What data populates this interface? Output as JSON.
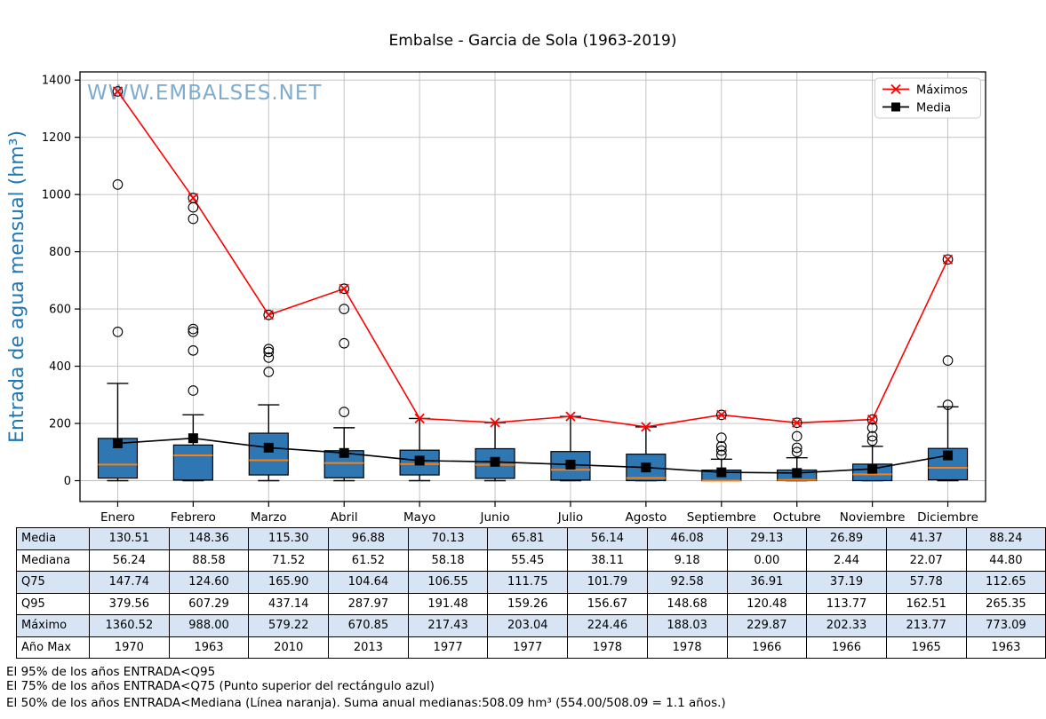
{
  "title": "Embalse - Garcia de Sola (1963-2019)",
  "watermark": "WWW.EMBALSES.NET",
  "legend": {
    "maximos_label": "Máximos",
    "media_label": "Media"
  },
  "y_axis_label": "Entrada de agua mensual (hm³)",
  "chart_data": {
    "type": "boxplot",
    "title": "Embalse - Garcia de Sola (1963-2019)",
    "ylabel": "Entrada de agua mensual (hm³)",
    "ylim": [
      0,
      1400
    ],
    "yticks": [
      0,
      200,
      400,
      600,
      800,
      1000,
      1200,
      1400
    ],
    "grid": true,
    "legend_position": "upper right",
    "categories": [
      "Enero",
      "Febrero",
      "Marzo",
      "Abril",
      "Mayo",
      "Junio",
      "Julio",
      "Agosto",
      "Septiembre",
      "Octubre",
      "Noviembre",
      "Diciembre"
    ],
    "series": [
      {
        "name": "Máximos",
        "marker": "x",
        "color": "#ff0000",
        "values": [
          1360.52,
          988.0,
          579.22,
          670.85,
          217.43,
          203.04,
          224.46,
          188.03,
          229.87,
          202.33,
          213.77,
          773.09
        ]
      },
      {
        "name": "Media",
        "marker": "square",
        "color": "#000000",
        "values": [
          130.51,
          148.36,
          115.3,
          96.88,
          70.13,
          65.81,
          56.14,
          46.08,
          29.13,
          26.89,
          41.37,
          88.24
        ]
      }
    ],
    "boxes": [
      {
        "month": "Enero",
        "q1": 9,
        "median": 56.24,
        "q3": 147.74,
        "whisker_low": 0,
        "whisker_high": 340,
        "outliers": [
          520,
          1035,
          1360.52
        ]
      },
      {
        "month": "Febrero",
        "q1": 2,
        "median": 88.58,
        "q3": 124.6,
        "whisker_low": 0,
        "whisker_high": 230,
        "outliers": [
          315,
          455,
          520,
          530,
          915,
          955,
          988.0
        ]
      },
      {
        "month": "Marzo",
        "q1": 20,
        "median": 71.52,
        "q3": 165.9,
        "whisker_low": 0,
        "whisker_high": 265,
        "outliers": [
          380,
          430,
          450,
          460,
          579.22
        ]
      },
      {
        "month": "Abril",
        "q1": 10,
        "median": 61.52,
        "q3": 104.64,
        "whisker_low": 0,
        "whisker_high": 185,
        "outliers": [
          240,
          480,
          600,
          670.85
        ]
      },
      {
        "month": "Mayo",
        "q1": 20,
        "median": 58.18,
        "q3": 106.55,
        "whisker_low": 0,
        "whisker_high": 217.43,
        "outliers": []
      },
      {
        "month": "Junio",
        "q1": 8,
        "median": 55.45,
        "q3": 111.75,
        "whisker_low": 0,
        "whisker_high": 203.04,
        "outliers": []
      },
      {
        "month": "Julio",
        "q1": 2,
        "median": 38.11,
        "q3": 101.79,
        "whisker_low": 0,
        "whisker_high": 224.46,
        "outliers": []
      },
      {
        "month": "Agosto",
        "q1": 0,
        "median": 9.18,
        "q3": 92.58,
        "whisker_low": 0,
        "whisker_high": 188.03,
        "outliers": []
      },
      {
        "month": "Septiembre",
        "q1": 0,
        "median": 0.0,
        "q3": 36.91,
        "whisker_low": 0,
        "whisker_high": 75,
        "outliers": [
          90,
          105,
          120,
          150,
          229.87
        ]
      },
      {
        "month": "Octubre",
        "q1": 0,
        "median": 2.44,
        "q3": 37.19,
        "whisker_low": 0,
        "whisker_high": 80,
        "outliers": [
          100,
          115,
          155,
          202.33
        ]
      },
      {
        "month": "Noviembre",
        "q1": 0,
        "median": 22.07,
        "q3": 57.78,
        "whisker_low": 0,
        "whisker_high": 120,
        "outliers": [
          140,
          155,
          185,
          213.77
        ]
      },
      {
        "month": "Diciembre",
        "q1": 3,
        "median": 44.8,
        "q3": 112.65,
        "whisker_low": 0,
        "whisker_high": 258,
        "outliers": [
          265,
          420,
          773.09
        ]
      }
    ],
    "colors": {
      "box_fill": "#2f77b2",
      "box_edge": "#000000",
      "median_line": "#ff7f0e",
      "max_line": "#ff0000",
      "mean_marker": "#000000",
      "grid": "#bdbdbd",
      "watermark": "#79a8cc",
      "axis_label": "#1f77b4"
    }
  },
  "table": {
    "row_labels": [
      "Media",
      "Mediana",
      "Q75",
      "Q95",
      "Máximo",
      "Año Max"
    ],
    "rows": [
      [
        "130.51",
        "148.36",
        "115.30",
        "96.88",
        "70.13",
        "65.81",
        "56.14",
        "46.08",
        "29.13",
        "26.89",
        "41.37",
        "88.24"
      ],
      [
        "56.24",
        "88.58",
        "71.52",
        "61.52",
        "58.18",
        "55.45",
        "38.11",
        "9.18",
        "0.00",
        "2.44",
        "22.07",
        "44.80"
      ],
      [
        "147.74",
        "124.60",
        "165.90",
        "104.64",
        "106.55",
        "111.75",
        "101.79",
        "92.58",
        "36.91",
        "37.19",
        "57.78",
        "112.65"
      ],
      [
        "379.56",
        "607.29",
        "437.14",
        "287.97",
        "191.48",
        "159.26",
        "156.67",
        "148.68",
        "120.48",
        "113.77",
        "162.51",
        "265.35"
      ],
      [
        "1360.52",
        "988.00",
        "579.22",
        "670.85",
        "217.43",
        "203.04",
        "224.46",
        "188.03",
        "229.87",
        "202.33",
        "213.77",
        "773.09"
      ],
      [
        "1970",
        "1963",
        "2010",
        "2013",
        "1977",
        "1977",
        "1978",
        "1978",
        "1966",
        "1966",
        "1965",
        "1963"
      ]
    ]
  },
  "footnotes": [
    "El 95% de los años ENTRADA<Q95",
    "El 75% de los años ENTRADA<Q75 (Punto superior del rectángulo azul)",
    "El 50% de los años ENTRADA<Mediana (Línea naranja). Suma anual medianas:508.09 hm³ (554.00/508.09 = 1.1 años.)"
  ]
}
